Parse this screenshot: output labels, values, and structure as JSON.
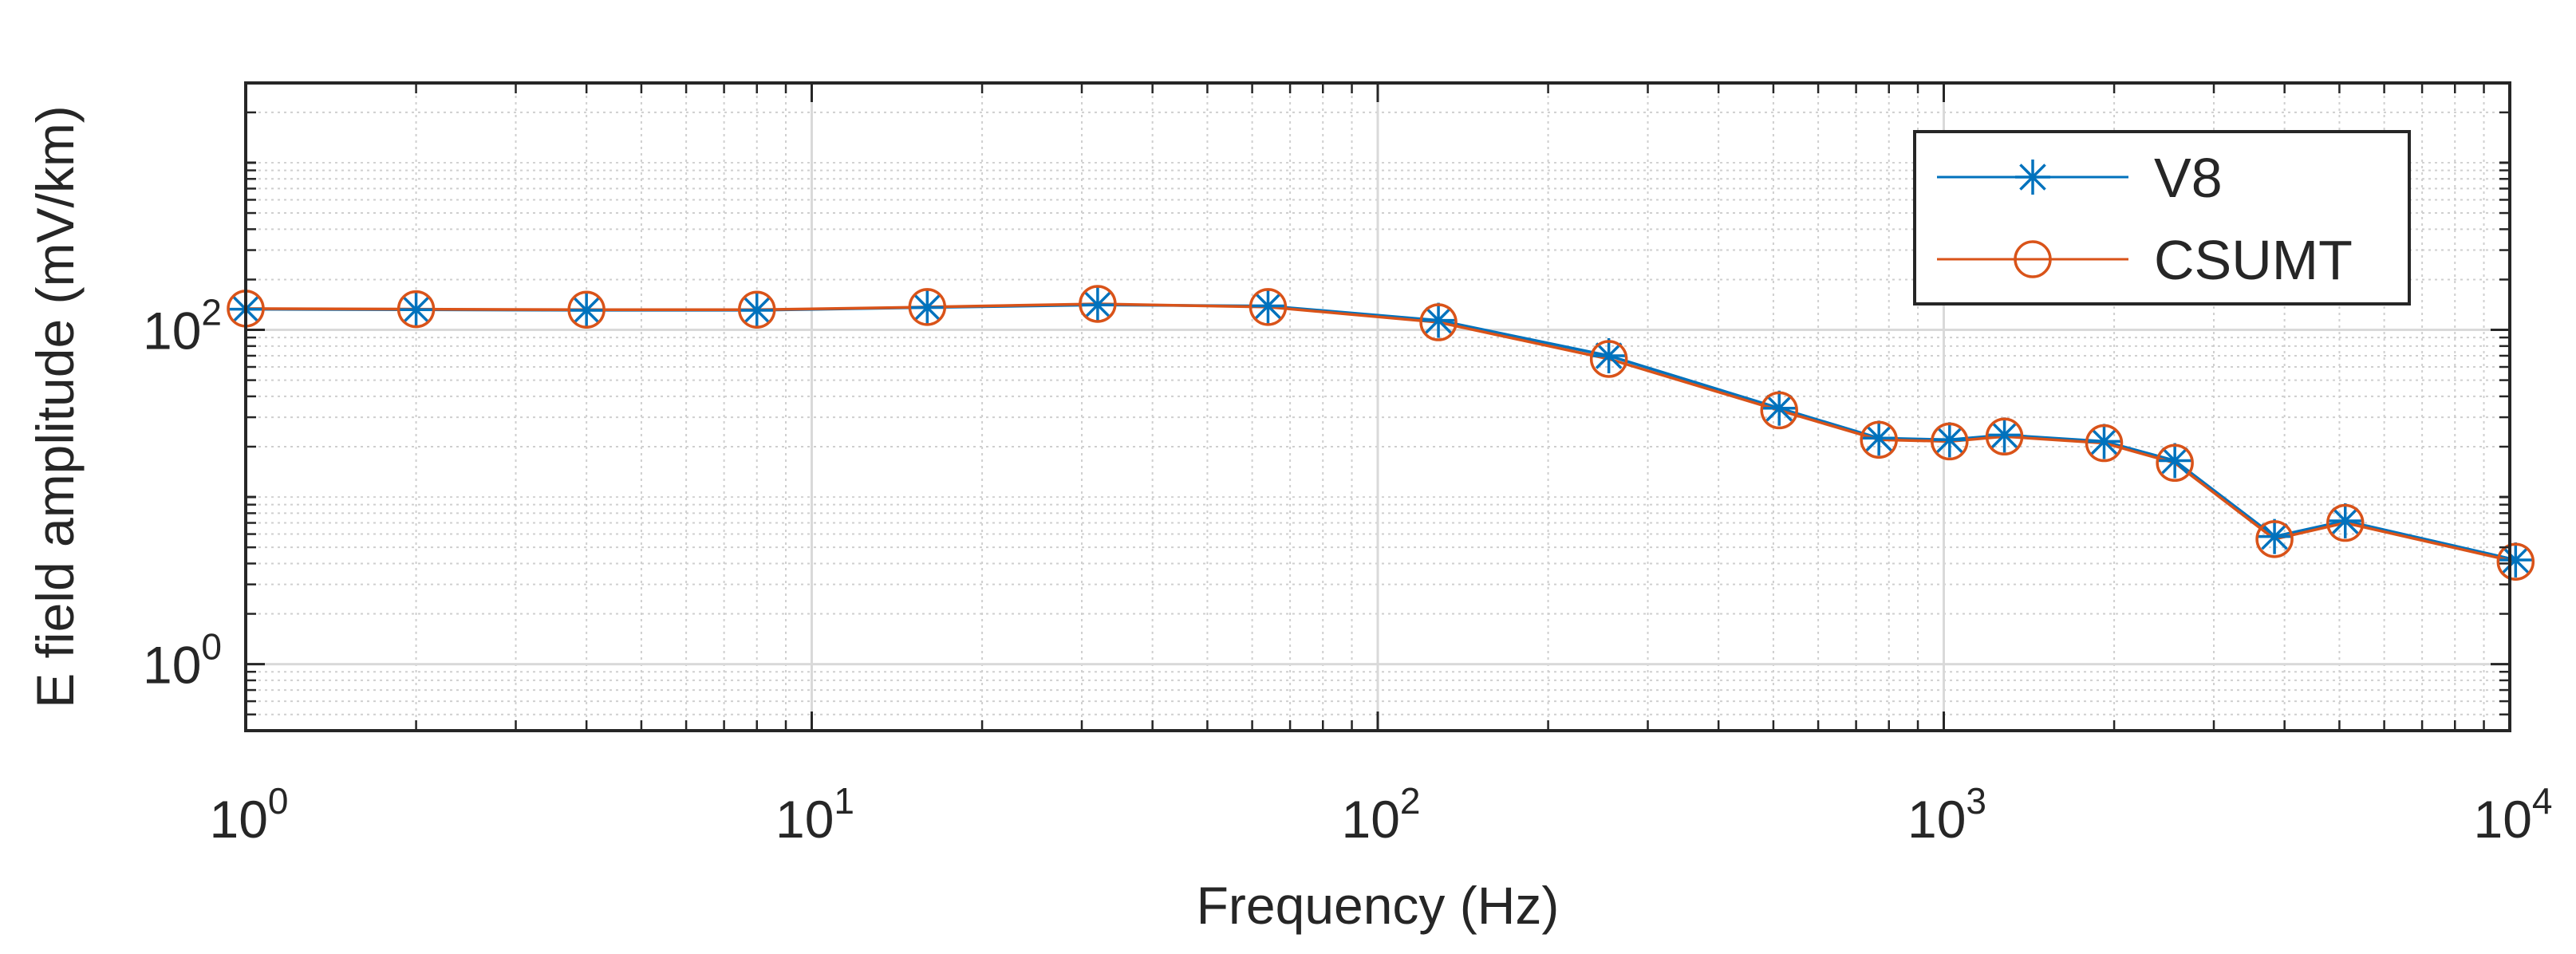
{
  "chart_data": {
    "type": "line",
    "xscale": "log",
    "yscale": "log",
    "xlabel": "Frequency (Hz)",
    "ylabel": "E field amplitude (mV/km)",
    "xlim": [
      1,
      10000
    ],
    "ylim": [
      0.4,
      3000
    ],
    "x_ticks": [
      {
        "value": 1,
        "base": "10",
        "exp": "0"
      },
      {
        "value": 10,
        "base": "10",
        "exp": "1"
      },
      {
        "value": 100,
        "base": "10",
        "exp": "2"
      },
      {
        "value": 1000,
        "base": "10",
        "exp": "3"
      },
      {
        "value": 10000,
        "base": "10",
        "exp": "4"
      }
    ],
    "y_ticks": [
      {
        "value": 1,
        "base": "10",
        "exp": "0"
      },
      {
        "value": 100,
        "base": "10",
        "exp": "2"
      }
    ],
    "grid": true,
    "minor_grid": true,
    "legend_position": "top-right",
    "x": [
      1,
      2,
      4,
      8,
      16,
      32,
      64,
      128,
      256,
      512,
      768,
      1024,
      1280,
      1920,
      2560,
      3840,
      5120,
      10240
    ],
    "series": [
      {
        "name": "V8",
        "color": "#0072BD",
        "marker": "asterisk",
        "values": [
          133,
          132,
          131,
          131,
          136,
          141,
          139,
          114,
          70,
          34,
          22.5,
          22,
          23.5,
          21.5,
          16.5,
          5.8,
          7.2,
          4.2
        ]
      },
      {
        "name": "CSUMT",
        "color": "#D95319",
        "marker": "circle",
        "values": [
          134,
          133,
          132,
          132,
          137,
          143,
          137,
          111,
          67,
          33,
          22,
          21.5,
          23,
          21,
          16,
          5.6,
          7.0,
          4.1
        ]
      }
    ]
  }
}
